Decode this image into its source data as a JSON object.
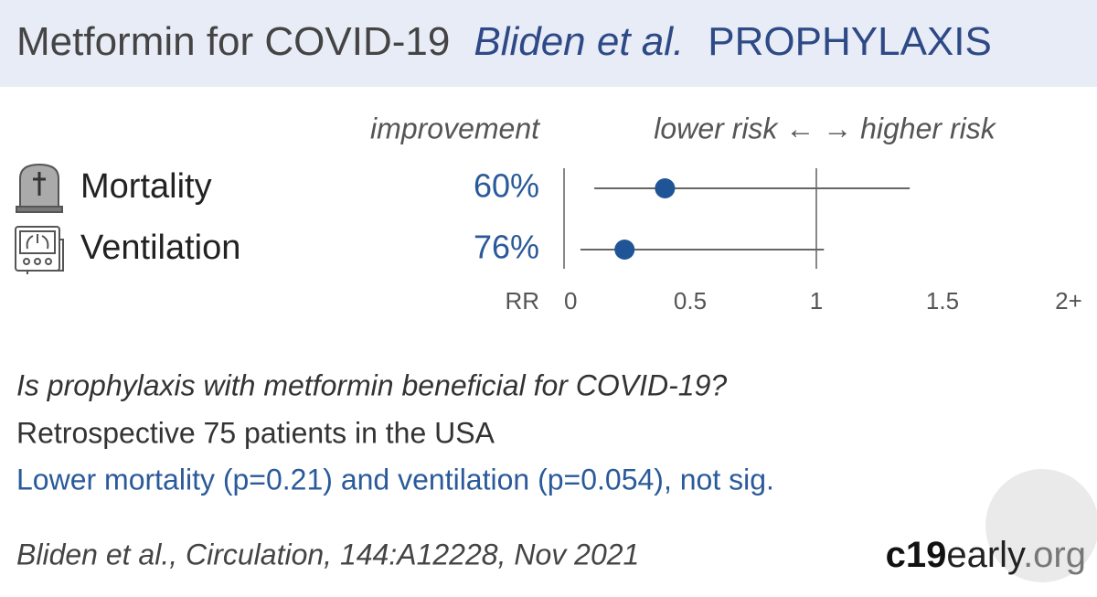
{
  "header": {
    "title": "Metformin for COVID-19",
    "authors": "Bliden et al.",
    "category": "PROPHYLAXIS"
  },
  "chart_data": {
    "type": "forest",
    "improvement_heading": "improvement",
    "direction_heading": "lower risk ← → higher risk",
    "categories": [
      "Mortality",
      "Ventilation"
    ],
    "improvement_labels": [
      "60%",
      "76%"
    ],
    "values": [
      0.4,
      0.24
    ],
    "lower": [
      0.12,
      0.065
    ],
    "upper": [
      1.37,
      1.03
    ],
    "color": "#1f5596",
    "xlabel": "RR",
    "xlim": [
      0,
      2
    ],
    "xticks": [
      0,
      0.5,
      1,
      1.5,
      {
        "value": 2,
        "label": "2+"
      }
    ],
    "reference": 1
  },
  "summary": {
    "question": "Is prophylaxis with metformin beneficial for COVID-19?",
    "details": "Retrospective 75 patients in the USA",
    "result": "Lower mortality (p=0.21) and ventilation (p=0.054), not sig."
  },
  "footer": {
    "citation": "Bliden et al., Circulation, 144:A12228, Nov 2021",
    "brand_bold": "c19",
    "brand_main": "early",
    "brand_tail": ".org"
  }
}
